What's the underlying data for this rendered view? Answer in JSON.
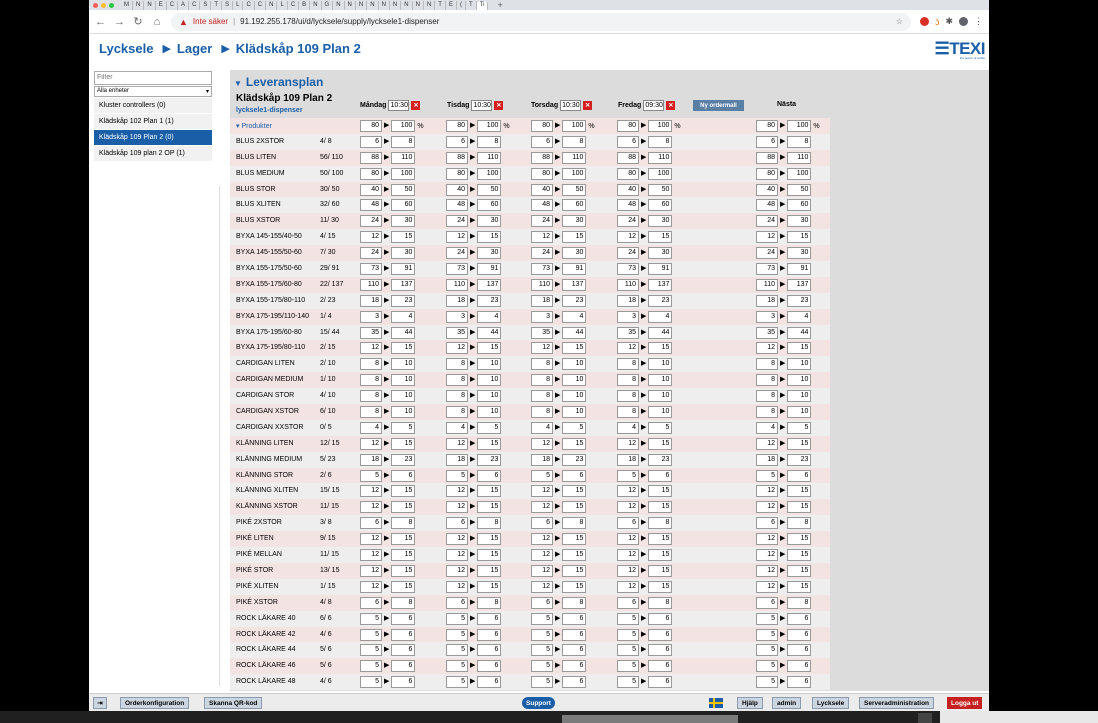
{
  "browser": {
    "tabs": [
      "M",
      "N",
      "N",
      "E",
      "C",
      "A",
      "C",
      "S",
      "T",
      "S",
      "L",
      "C",
      "C",
      "N",
      "L",
      "C",
      "B",
      "N",
      "G",
      "N",
      "N",
      "N",
      "N",
      "N",
      "N",
      "N",
      "N",
      "N",
      "T",
      "E",
      "(",
      "T",
      "Ti"
    ],
    "active_tab": "Ti",
    "insecure_label": "Inte säker",
    "url": "91.192.255.178/ui/d/lycksele/supply/lycksele1-dispenser"
  },
  "header": {
    "crumbs": [
      "Lycksele",
      "Lager",
      "Klädskåp 109 Plan 2"
    ],
    "logo": "TEXI",
    "logo_tagline": "the power of textile"
  },
  "sidebar": {
    "filter_placeholder": "Filter",
    "unit_select": "Alla enheter",
    "items": [
      {
        "label": "Kluster controllers (0)",
        "active": false
      },
      {
        "label": "Klädskåp 102 Plan 1 (1)",
        "active": false
      },
      {
        "label": "Klädskåp 109 Plan 2 (0)",
        "active": true
      },
      {
        "label": "Klädskåp 109 plan 2 OP (1)",
        "active": false
      }
    ]
  },
  "plan": {
    "title": "Leveransplan",
    "unit": "Klädskåp 109 Plan 2",
    "dispenser": "lycksele1-dispenser",
    "days": [
      {
        "name": "Måndag",
        "time": "10:30"
      },
      {
        "name": "Tisdag",
        "time": "10:30"
      },
      {
        "name": "Torsdag",
        "time": "10:30"
      },
      {
        "name": "Fredag",
        "time": "09:30"
      }
    ],
    "new_order_label": "Ny ordermall",
    "next_label": "Nästa",
    "group": {
      "name": "Produkter",
      "fill": "80",
      "max": "100",
      "pct": "%"
    },
    "products": [
      {
        "name": "BLUS 2XSTOR",
        "count": "4/ 8",
        "fill": "6",
        "max": "8"
      },
      {
        "name": "BLUS LITEN",
        "count": "56/ 110",
        "fill": "88",
        "max": "110"
      },
      {
        "name": "BLUS MEDIUM",
        "count": "50/ 100",
        "fill": "80",
        "max": "100"
      },
      {
        "name": "BLUS STOR",
        "count": "30/ 50",
        "fill": "40",
        "max": "50"
      },
      {
        "name": "BLUS XLITEN",
        "count": "32/ 60",
        "fill": "48",
        "max": "60"
      },
      {
        "name": "BLUS XSTOR",
        "count": "11/ 30",
        "fill": "24",
        "max": "30"
      },
      {
        "name": "BYXA 145-155/40-50",
        "count": "4/ 15",
        "fill": "12",
        "max": "15"
      },
      {
        "name": "BYXA 145-155/50-60",
        "count": "7/ 30",
        "fill": "24",
        "max": "30"
      },
      {
        "name": "BYXA 155-175/50-60",
        "count": "29/ 91",
        "fill": "73",
        "max": "91"
      },
      {
        "name": "BYXA 155-175/60-80",
        "count": "22/ 137",
        "fill": "110",
        "max": "137"
      },
      {
        "name": "BYXA 155-175/80-110",
        "count": "2/ 23",
        "fill": "18",
        "max": "23"
      },
      {
        "name": "BYXA 175-195/110-140",
        "count": "1/ 4",
        "fill": "3",
        "max": "4"
      },
      {
        "name": "BYXA 175-195/60-80",
        "count": "15/ 44",
        "fill": "35",
        "max": "44"
      },
      {
        "name": "BYXA 175-195/80-110",
        "count": "2/ 15",
        "fill": "12",
        "max": "15"
      },
      {
        "name": "CARDIGAN LITEN",
        "count": "2/ 10",
        "fill": "8",
        "max": "10"
      },
      {
        "name": "CARDIGAN MEDIUM",
        "count": "1/ 10",
        "fill": "8",
        "max": "10"
      },
      {
        "name": "CARDIGAN STOR",
        "count": "4/ 10",
        "fill": "8",
        "max": "10"
      },
      {
        "name": "CARDIGAN XSTOR",
        "count": "6/ 10",
        "fill": "8",
        "max": "10"
      },
      {
        "name": "CARDIGAN XXSTOR",
        "count": "0/ 5",
        "fill": "4",
        "max": "5"
      },
      {
        "name": "KLÄNNING LITEN",
        "count": "12/ 15",
        "fill": "12",
        "max": "15"
      },
      {
        "name": "KLÄNNING MEDIUM",
        "count": "5/ 23",
        "fill": "18",
        "max": "23"
      },
      {
        "name": "KLÄNNING STOR",
        "count": "2/ 6",
        "fill": "5",
        "max": "6"
      },
      {
        "name": "KLÄNNING XLITEN",
        "count": "15/ 15",
        "fill": "12",
        "max": "15"
      },
      {
        "name": "KLÄNNING XSTOR",
        "count": "11/ 15",
        "fill": "12",
        "max": "15"
      },
      {
        "name": "PIKÉ 2XSTOR",
        "count": "3/ 8",
        "fill": "6",
        "max": "8"
      },
      {
        "name": "PIKÉ LITEN",
        "count": "9/ 15",
        "fill": "12",
        "max": "15"
      },
      {
        "name": "PIKÉ MELLAN",
        "count": "11/ 15",
        "fill": "12",
        "max": "15"
      },
      {
        "name": "PIKÉ STOR",
        "count": "13/ 15",
        "fill": "12",
        "max": "15"
      },
      {
        "name": "PIKÉ XLITEN",
        "count": "1/ 15",
        "fill": "12",
        "max": "15"
      },
      {
        "name": "PIKÉ XSTOR",
        "count": "4/ 8",
        "fill": "6",
        "max": "8"
      },
      {
        "name": "ROCK LÄKARE 40",
        "count": "6/ 6",
        "fill": "5",
        "max": "6"
      },
      {
        "name": "ROCK LÄKARE 42",
        "count": "4/ 6",
        "fill": "5",
        "max": "6"
      },
      {
        "name": "ROCK LÄKARE 44",
        "count": "5/ 6",
        "fill": "5",
        "max": "6"
      },
      {
        "name": "ROCK LÄKARE 46",
        "count": "5/ 6",
        "fill": "5",
        "max": "6"
      },
      {
        "name": "ROCK LÄKARE 48",
        "count": "4/ 6",
        "fill": "5",
        "max": "6"
      }
    ]
  },
  "statusbar": {
    "order_config": "Orderkonfiguration",
    "scan_qr": "Skanna QR-kod",
    "support": "Support",
    "help": "Hjälp",
    "user": "admin",
    "site": "Lycksele",
    "server_admin": "Serveradministration",
    "logout": "Logga ut"
  }
}
